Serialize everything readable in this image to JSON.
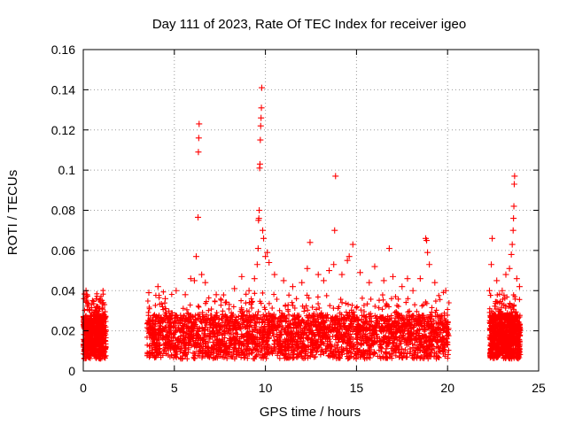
{
  "chart_data": {
    "type": "scatter",
    "title": "Day 111 of 2023, Rate Of TEC Index for receiver igeo",
    "xlabel": "GPS time / hours",
    "ylabel": "ROTI / TECUs",
    "xlim": [
      0,
      25
    ],
    "ylim": [
      0,
      0.16
    ],
    "xticks": [
      0,
      5,
      10,
      15,
      20,
      25
    ],
    "xtick_labels": [
      "0",
      "5",
      "10",
      "15",
      "20",
      "25"
    ],
    "yticks": [
      0,
      0.02,
      0.04,
      0.06,
      0.08,
      0.1,
      0.12,
      0.14,
      0.16
    ],
    "ytick_labels": [
      "0",
      "0.02",
      "0.04",
      "0.06",
      "0.08",
      "0.1",
      "0.12",
      "0.14",
      "0.16"
    ],
    "grid": true,
    "legend": "none",
    "marker": "+",
    "color": "#ff0000",
    "data_coverage": [
      {
        "x_start": 0.0,
        "x_end": 1.25
      },
      {
        "x_start": 3.5,
        "x_end": 20.1
      },
      {
        "x_start": 22.3,
        "x_end": 24.0
      }
    ],
    "series": [
      {
        "points": [
          [
            0.05,
            0.036
          ],
          [
            0.15,
            0.04
          ],
          [
            0.2,
            0.038
          ],
          [
            0.3,
            0.033
          ],
          [
            0.6,
            0.027
          ],
          [
            0.9,
            0.031
          ],
          [
            1.1,
            0.034
          ],
          [
            3.6,
            0.039
          ],
          [
            4.1,
            0.042
          ],
          [
            4.5,
            0.036
          ],
          [
            5.1,
            0.04
          ],
          [
            5.6,
            0.038
          ],
          [
            5.9,
            0.046
          ],
          [
            6.1,
            0.045
          ],
          [
            6.2,
            0.057
          ],
          [
            6.3,
            0.0765
          ],
          [
            6.32,
            0.109
          ],
          [
            6.34,
            0.116
          ],
          [
            6.36,
            0.123
          ],
          [
            6.5,
            0.048
          ],
          [
            6.7,
            0.044
          ],
          [
            7.3,
            0.038
          ],
          [
            7.8,
            0.034
          ],
          [
            8.3,
            0.041
          ],
          [
            8.7,
            0.047
          ],
          [
            9.1,
            0.04
          ],
          [
            9.4,
            0.046
          ],
          [
            9.55,
            0.053
          ],
          [
            9.6,
            0.061
          ],
          [
            9.62,
            0.075
          ],
          [
            9.64,
            0.076
          ],
          [
            9.66,
            0.08
          ],
          [
            9.68,
            0.101
          ],
          [
            9.7,
            0.103
          ],
          [
            9.72,
            0.115
          ],
          [
            9.74,
            0.122
          ],
          [
            9.76,
            0.126
          ],
          [
            9.78,
            0.131
          ],
          [
            9.8,
            0.141
          ],
          [
            9.85,
            0.07
          ],
          [
            9.9,
            0.066
          ],
          [
            10.0,
            0.057
          ],
          [
            10.1,
            0.059
          ],
          [
            10.2,
            0.054
          ],
          [
            10.5,
            0.048
          ],
          [
            11.0,
            0.045
          ],
          [
            11.5,
            0.042
          ],
          [
            12.0,
            0.044
          ],
          [
            12.3,
            0.051
          ],
          [
            12.45,
            0.064
          ],
          [
            12.9,
            0.048
          ],
          [
            13.2,
            0.045
          ],
          [
            13.5,
            0.05
          ],
          [
            13.75,
            0.053
          ],
          [
            13.8,
            0.07
          ],
          [
            13.85,
            0.097
          ],
          [
            14.2,
            0.048
          ],
          [
            14.5,
            0.055
          ],
          [
            14.6,
            0.057
          ],
          [
            14.8,
            0.063
          ],
          [
            15.2,
            0.049
          ],
          [
            15.7,
            0.044
          ],
          [
            16.0,
            0.052
          ],
          [
            16.5,
            0.045
          ],
          [
            16.8,
            0.061
          ],
          [
            17.0,
            0.047
          ],
          [
            17.5,
            0.042
          ],
          [
            17.8,
            0.046
          ],
          [
            18.1,
            0.04
          ],
          [
            18.5,
            0.046
          ],
          [
            18.8,
            0.066
          ],
          [
            18.85,
            0.065
          ],
          [
            18.9,
            0.059
          ],
          [
            19.0,
            0.053
          ],
          [
            19.3,
            0.044
          ],
          [
            19.9,
            0.04
          ],
          [
            22.3,
            0.04
          ],
          [
            22.4,
            0.053
          ],
          [
            22.45,
            0.066
          ],
          [
            22.7,
            0.045
          ],
          [
            23.0,
            0.04
          ],
          [
            23.2,
            0.048
          ],
          [
            23.4,
            0.051
          ],
          [
            23.5,
            0.058
          ],
          [
            23.55,
            0.063
          ],
          [
            23.6,
            0.07
          ],
          [
            23.62,
            0.076
          ],
          [
            23.64,
            0.082
          ],
          [
            23.66,
            0.093
          ],
          [
            23.68,
            0.097
          ],
          [
            23.8,
            0.046
          ],
          [
            23.95,
            0.042
          ]
        ]
      }
    ]
  }
}
